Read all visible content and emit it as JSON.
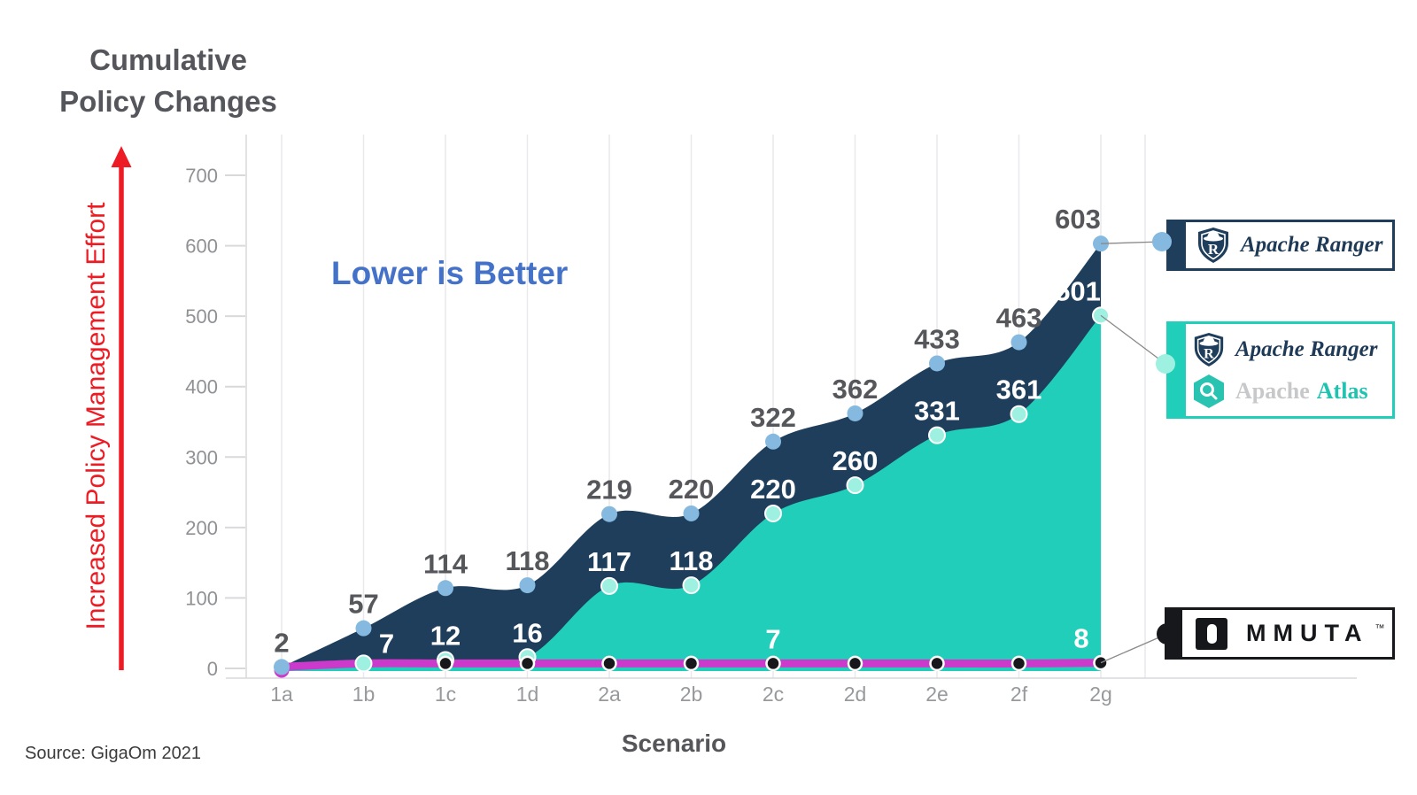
{
  "title": {
    "line1": "Cumulative",
    "line2": "Policy Changes"
  },
  "y_axis_label": "Increased Policy Management Effort",
  "annotation": {
    "text": "Lower is Better",
    "color": "#4472c8"
  },
  "x_title": "Scenario",
  "source": "Source: GigaOm 2021",
  "colors": {
    "ranger_area": "#1f3e5c",
    "ranger_dot": "#85b9df",
    "atlas_area": "#21ceb9",
    "atlas_dot": "#9ef0e1",
    "immuta_line": "#cb3acb",
    "immuta_dot": "#17181b",
    "arrow_red": "#ed1b23",
    "label_dark": "#56575b",
    "label_white": "#ffffff",
    "tick_gray": "#8f9194",
    "xlabel_gray": "#97999c",
    "grid": "#e9e9eb",
    "axis": "#d9d9dc",
    "connector": "#8a8a8a"
  },
  "chart_data": {
    "type": "area",
    "title": "Cumulative Policy Changes",
    "xlabel": "Scenario",
    "ylabel": "Increased Policy Management Effort",
    "ylim": [
      0,
      700
    ],
    "y_ticks": [
      0,
      100,
      200,
      300,
      400,
      500,
      600,
      700
    ],
    "grid": "vertical-only",
    "legend_position": "right",
    "categories": [
      "1a",
      "1b",
      "1c",
      "1d",
      "2a",
      "2b",
      "2c",
      "2d",
      "2e",
      "2f",
      "2g"
    ],
    "series": [
      {
        "name": "Apache Ranger",
        "type": "area",
        "color": "#1f3e5c",
        "dot_color": "#85b9df",
        "label_color": "#56575b",
        "values": [
          2,
          57,
          114,
          118,
          219,
          220,
          322,
          362,
          433,
          463,
          603
        ],
        "labels": [
          "2",
          "57",
          "114",
          "118",
          "219",
          "220",
          "322",
          "362",
          "433",
          "463",
          "603"
        ]
      },
      {
        "name": "Apache Ranger + Apache Atlas",
        "type": "area",
        "color": "#21ceb9",
        "dot_color": "#9ef0e1",
        "label_color": "#ffffff",
        "values": [
          2,
          7,
          12,
          16,
          117,
          118,
          220,
          260,
          331,
          361,
          501
        ],
        "labels": [
          "",
          "7",
          "12",
          "16",
          "117",
          "118",
          "220",
          "260",
          "331",
          "361",
          "501"
        ]
      },
      {
        "name": "Immuta",
        "type": "line",
        "color": "#cb3acb",
        "dot_color": "#17181b",
        "label_color": "#ffffff",
        "values": [
          2,
          7,
          7,
          7,
          7,
          7,
          7,
          7,
          7,
          7,
          8
        ],
        "labels": [
          "",
          "",
          "",
          "",
          "",
          "",
          "7",
          "",
          "",
          "",
          "8"
        ]
      }
    ]
  },
  "legend": {
    "ranger": {
      "label": "Apache Ranger"
    },
    "ranger_atlas": {
      "label_ranger": "Apache Ranger",
      "label_atlas_word1": "Apache",
      "label_atlas_word2": "Atlas"
    },
    "immuta": {
      "label": "IMMUTA",
      "rest_letters": "MMUTA",
      "tm": "™"
    }
  }
}
